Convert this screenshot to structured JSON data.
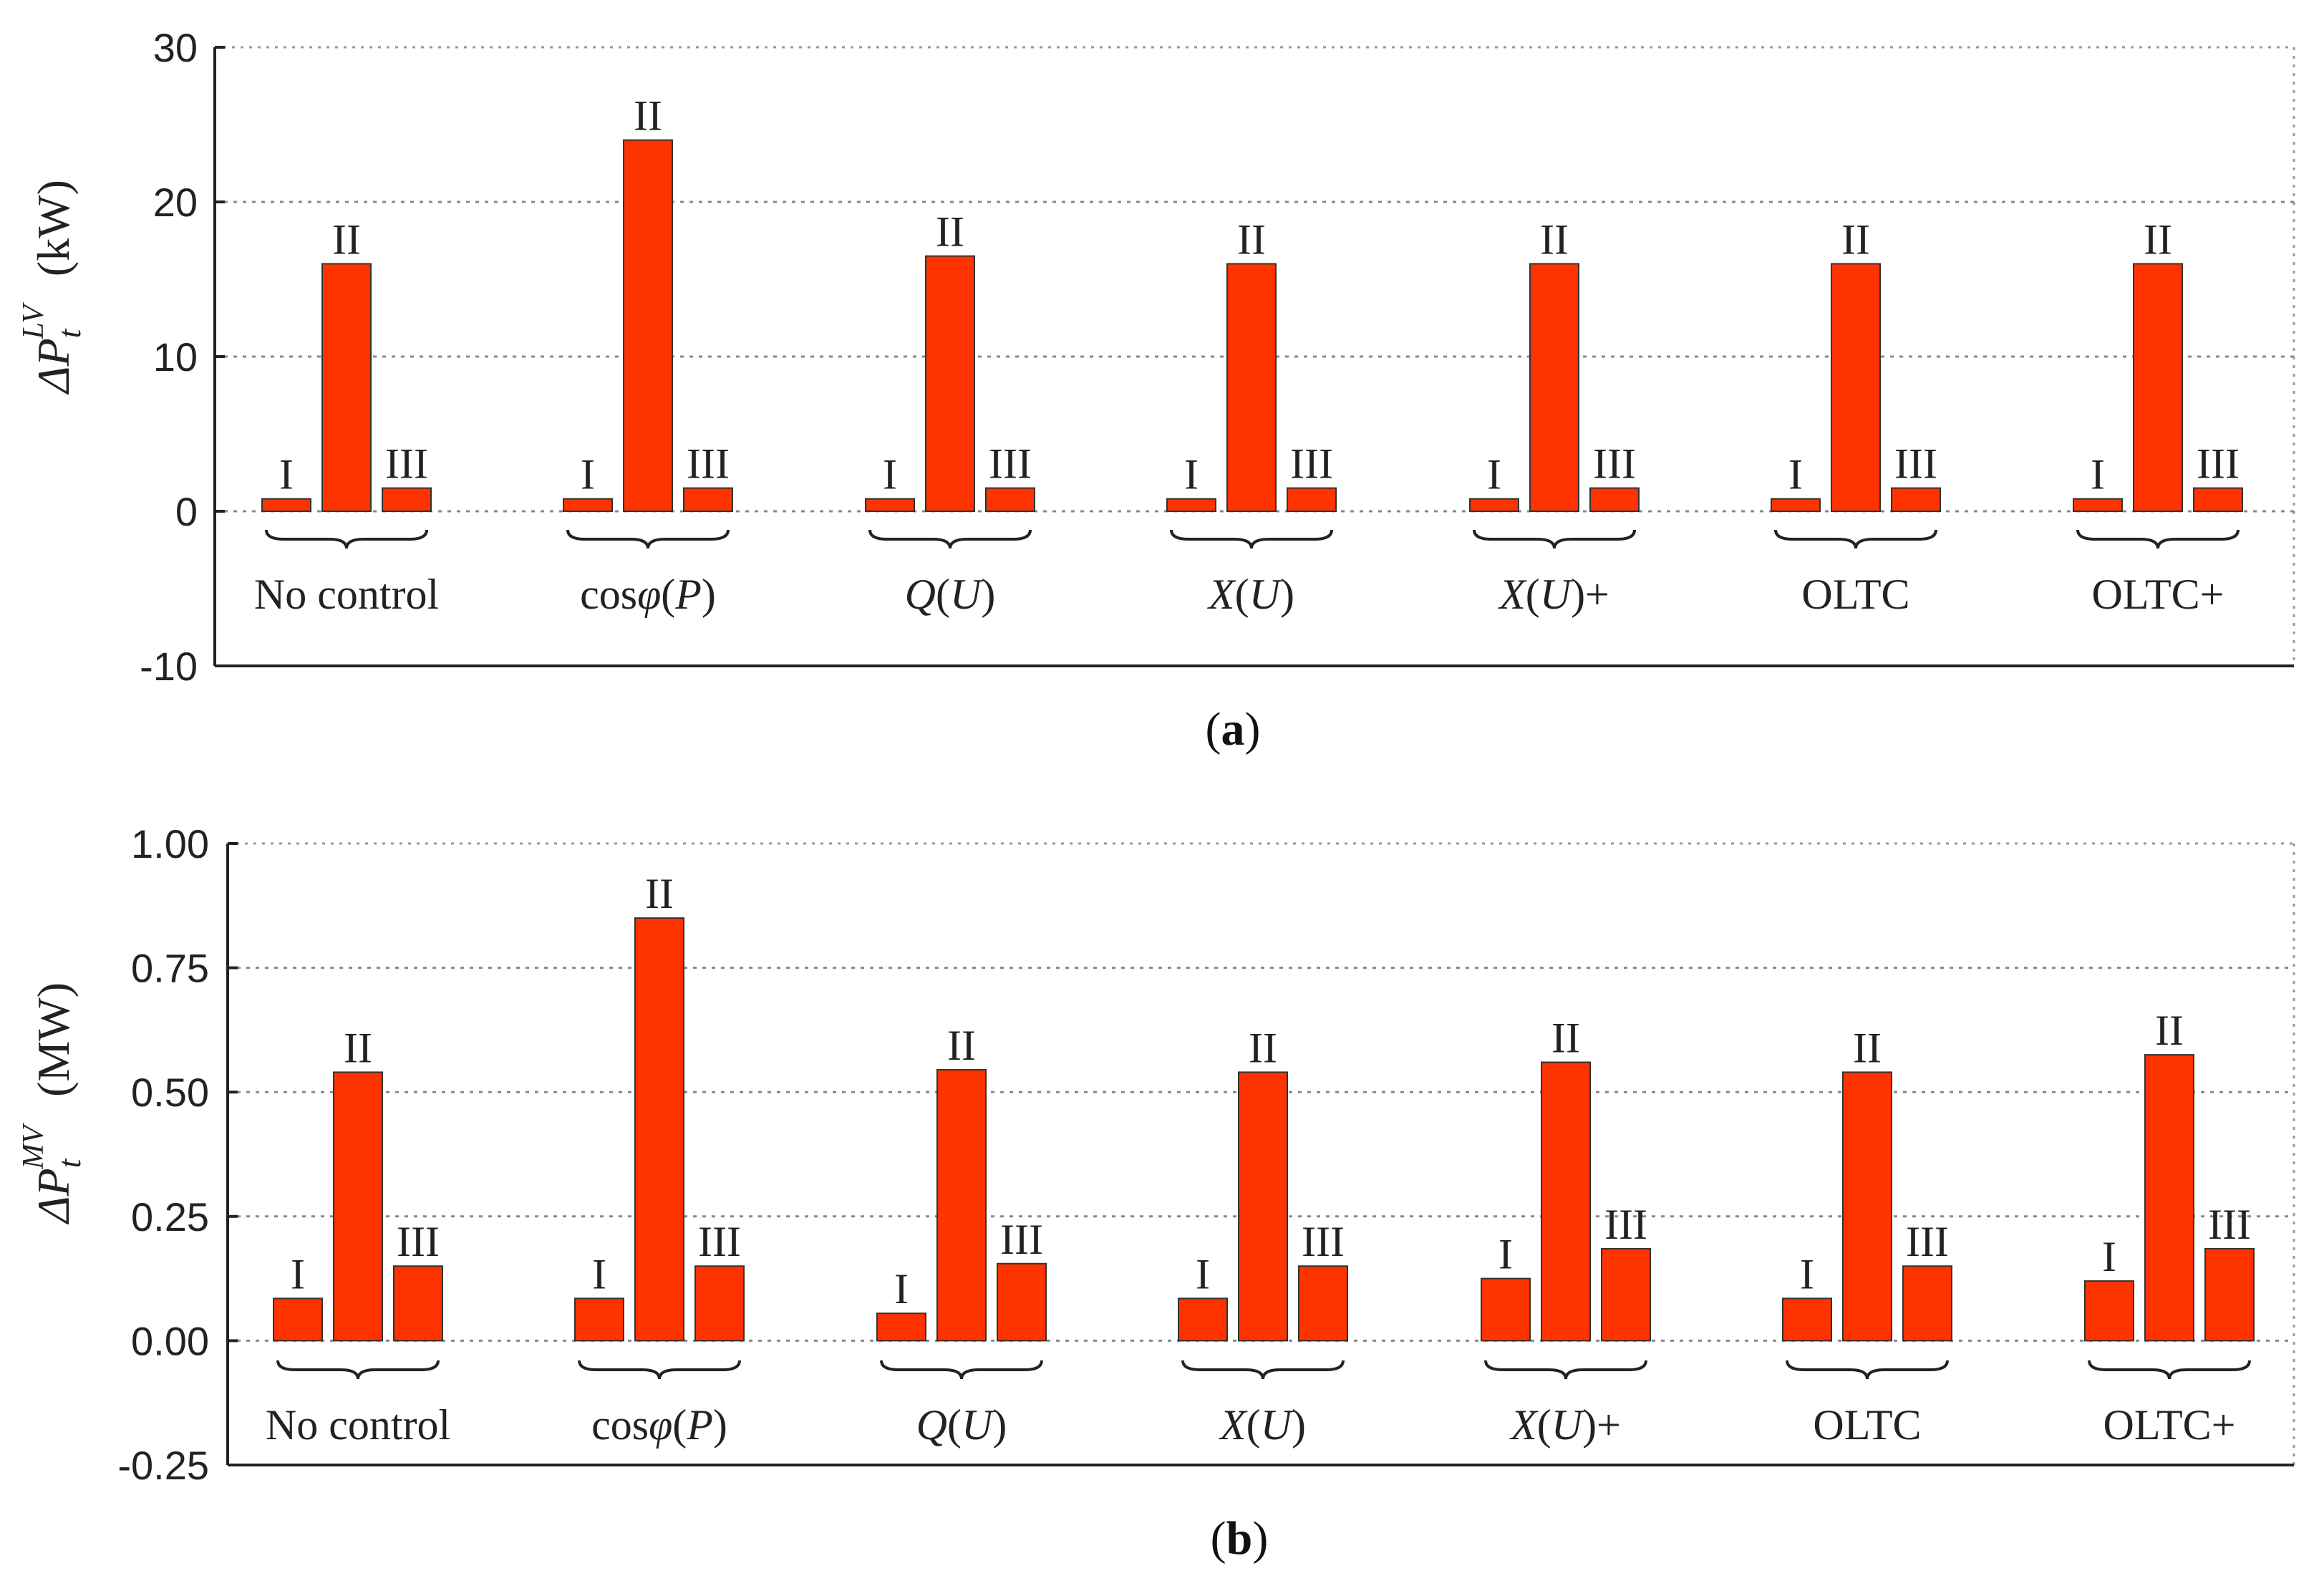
{
  "chart_data": [
    {
      "id": "a",
      "type": "bar",
      "caption": "a",
      "ylabel_symbol": "ΔP",
      "ylabel_sub": "t",
      "ylabel_sup": "LV",
      "ylabel_unit": "(kW)",
      "ylim": [
        -10,
        30
      ],
      "yticks": [
        30,
        20,
        10,
        0,
        -10
      ],
      "ytick_labels": [
        "30",
        "20",
        "10",
        "0",
        "-10"
      ],
      "grid": true,
      "categories": [
        "No control",
        "cosφ(P)",
        "Q(U)",
        "X(U)",
        "X(U)+",
        "OLTC",
        "OLTC+"
      ],
      "series_labels": [
        "I",
        "II",
        "III"
      ],
      "values": [
        [
          0.8,
          16.0,
          1.5
        ],
        [
          0.8,
          24.0,
          1.5
        ],
        [
          0.8,
          16.5,
          1.5
        ],
        [
          0.8,
          16.0,
          1.5
        ],
        [
          0.8,
          16.0,
          1.5
        ],
        [
          0.8,
          16.0,
          1.5
        ],
        [
          0.8,
          16.0,
          1.5
        ]
      ],
      "bar_color": "#ff3300"
    },
    {
      "id": "b",
      "type": "bar",
      "caption": "b",
      "ylabel_symbol": "ΔP",
      "ylabel_sub": "t",
      "ylabel_sup": "MV",
      "ylabel_unit": "(MW)",
      "ylim": [
        -0.25,
        1.0
      ],
      "yticks": [
        1.0,
        0.75,
        0.5,
        0.25,
        0.0,
        -0.25
      ],
      "ytick_labels": [
        "1.00",
        "0.75",
        "0.50",
        "0.25",
        "0.00",
        "-0.25"
      ],
      "grid": true,
      "categories": [
        "No control",
        "cosφ(P)",
        "Q(U)",
        "X(U)",
        "X(U)+",
        "OLTC",
        "OLTC+"
      ],
      "series_labels": [
        "I",
        "II",
        "III"
      ],
      "values": [
        [
          0.085,
          0.54,
          0.15
        ],
        [
          0.085,
          0.85,
          0.15
        ],
        [
          0.055,
          0.545,
          0.155
        ],
        [
          0.085,
          0.54,
          0.15
        ],
        [
          0.125,
          0.56,
          0.185
        ],
        [
          0.085,
          0.54,
          0.15
        ],
        [
          0.12,
          0.575,
          0.185
        ]
      ],
      "bar_color": "#ff3300"
    }
  ],
  "category_parts": [
    [
      {
        "t": "No control",
        "i": false
      }
    ],
    [
      {
        "t": "cos",
        "i": false
      },
      {
        "t": "φ",
        "i": true
      },
      {
        "t": "(",
        "i": false
      },
      {
        "t": "P",
        "i": true
      },
      {
        "t": ")",
        "i": false
      }
    ],
    [
      {
        "t": "Q",
        "i": true
      },
      {
        "t": "(",
        "i": false
      },
      {
        "t": "U",
        "i": true
      },
      {
        "t": ")",
        "i": false
      }
    ],
    [
      {
        "t": "X",
        "i": true
      },
      {
        "t": "(",
        "i": false
      },
      {
        "t": "U",
        "i": true
      },
      {
        "t": ")",
        "i": false
      }
    ],
    [
      {
        "t": "X",
        "i": true
      },
      {
        "t": "(",
        "i": false
      },
      {
        "t": "U",
        "i": true
      },
      {
        "t": ")+",
        "i": false
      }
    ],
    [
      {
        "t": "OLTC",
        "i": false
      }
    ],
    [
      {
        "t": "OLTC+",
        "i": false
      }
    ]
  ]
}
